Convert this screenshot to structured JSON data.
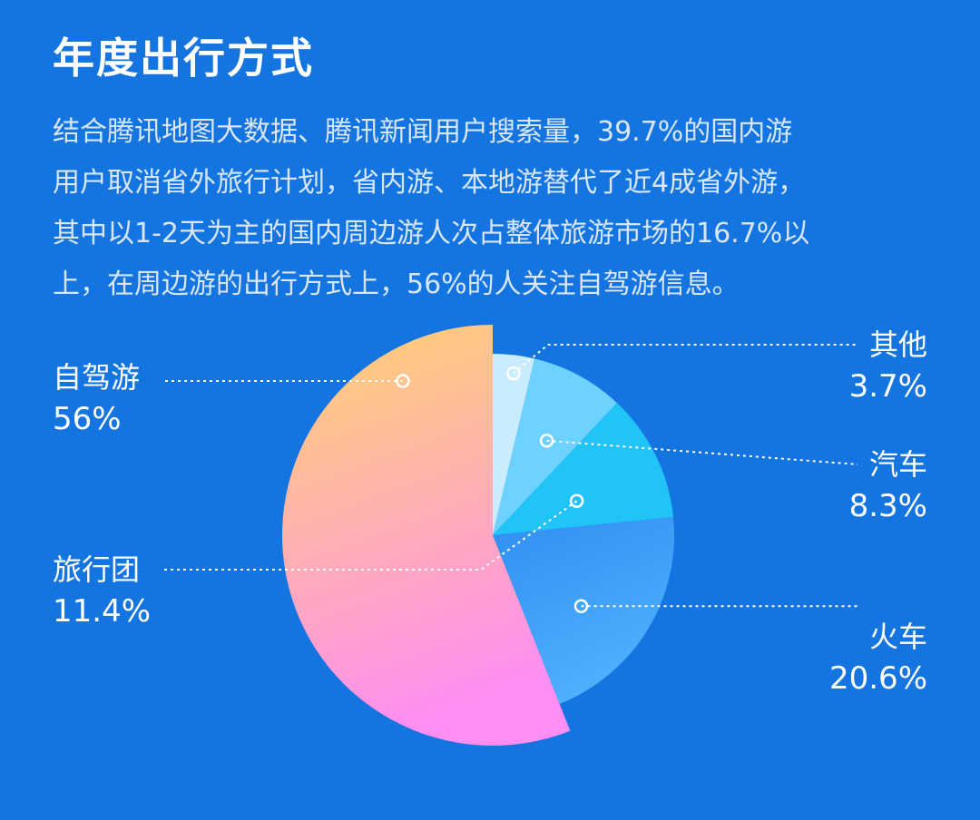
{
  "title": "年度出行方式",
  "description": [
    "结合腾讯地图大数据、腾讯新闻用户搜索量，39.7%的国内游",
    "用户取消省外旅行计划，省内游、本地游替代了近4成省外游，",
    "其中以1-2天为主的国内周边游人次占整体旅游市场的16.7%以",
    "上，在周边游的出行方式上，56%的人关注自驾游信息。"
  ],
  "chart_data": {
    "type": "pie",
    "title": "",
    "slices": [
      {
        "name": "自驾游",
        "value": 56,
        "label": "56%"
      },
      {
        "name": "旅行团",
        "value": 11.4,
        "label": "11.4%"
      },
      {
        "name": "火车",
        "value": 20.6,
        "label": "20.6%"
      },
      {
        "name": "汽车",
        "value": 8.3,
        "label": "8.3%"
      },
      {
        "name": "其他",
        "value": 3.7,
        "label": "3.7%"
      }
    ],
    "colors": {
      "自驾游": [
        "#FFD36E",
        "#FF8EF2"
      ],
      "火车": [
        "#2F8FF0",
        "#4FB0FF"
      ],
      "旅行团": [
        "#21C4F6",
        "#21C4F6"
      ],
      "汽车": [
        "#6DD2FF",
        "#6DD2FF"
      ],
      "其他": [
        "#C9ECFF",
        "#C9ECFF"
      ]
    }
  }
}
